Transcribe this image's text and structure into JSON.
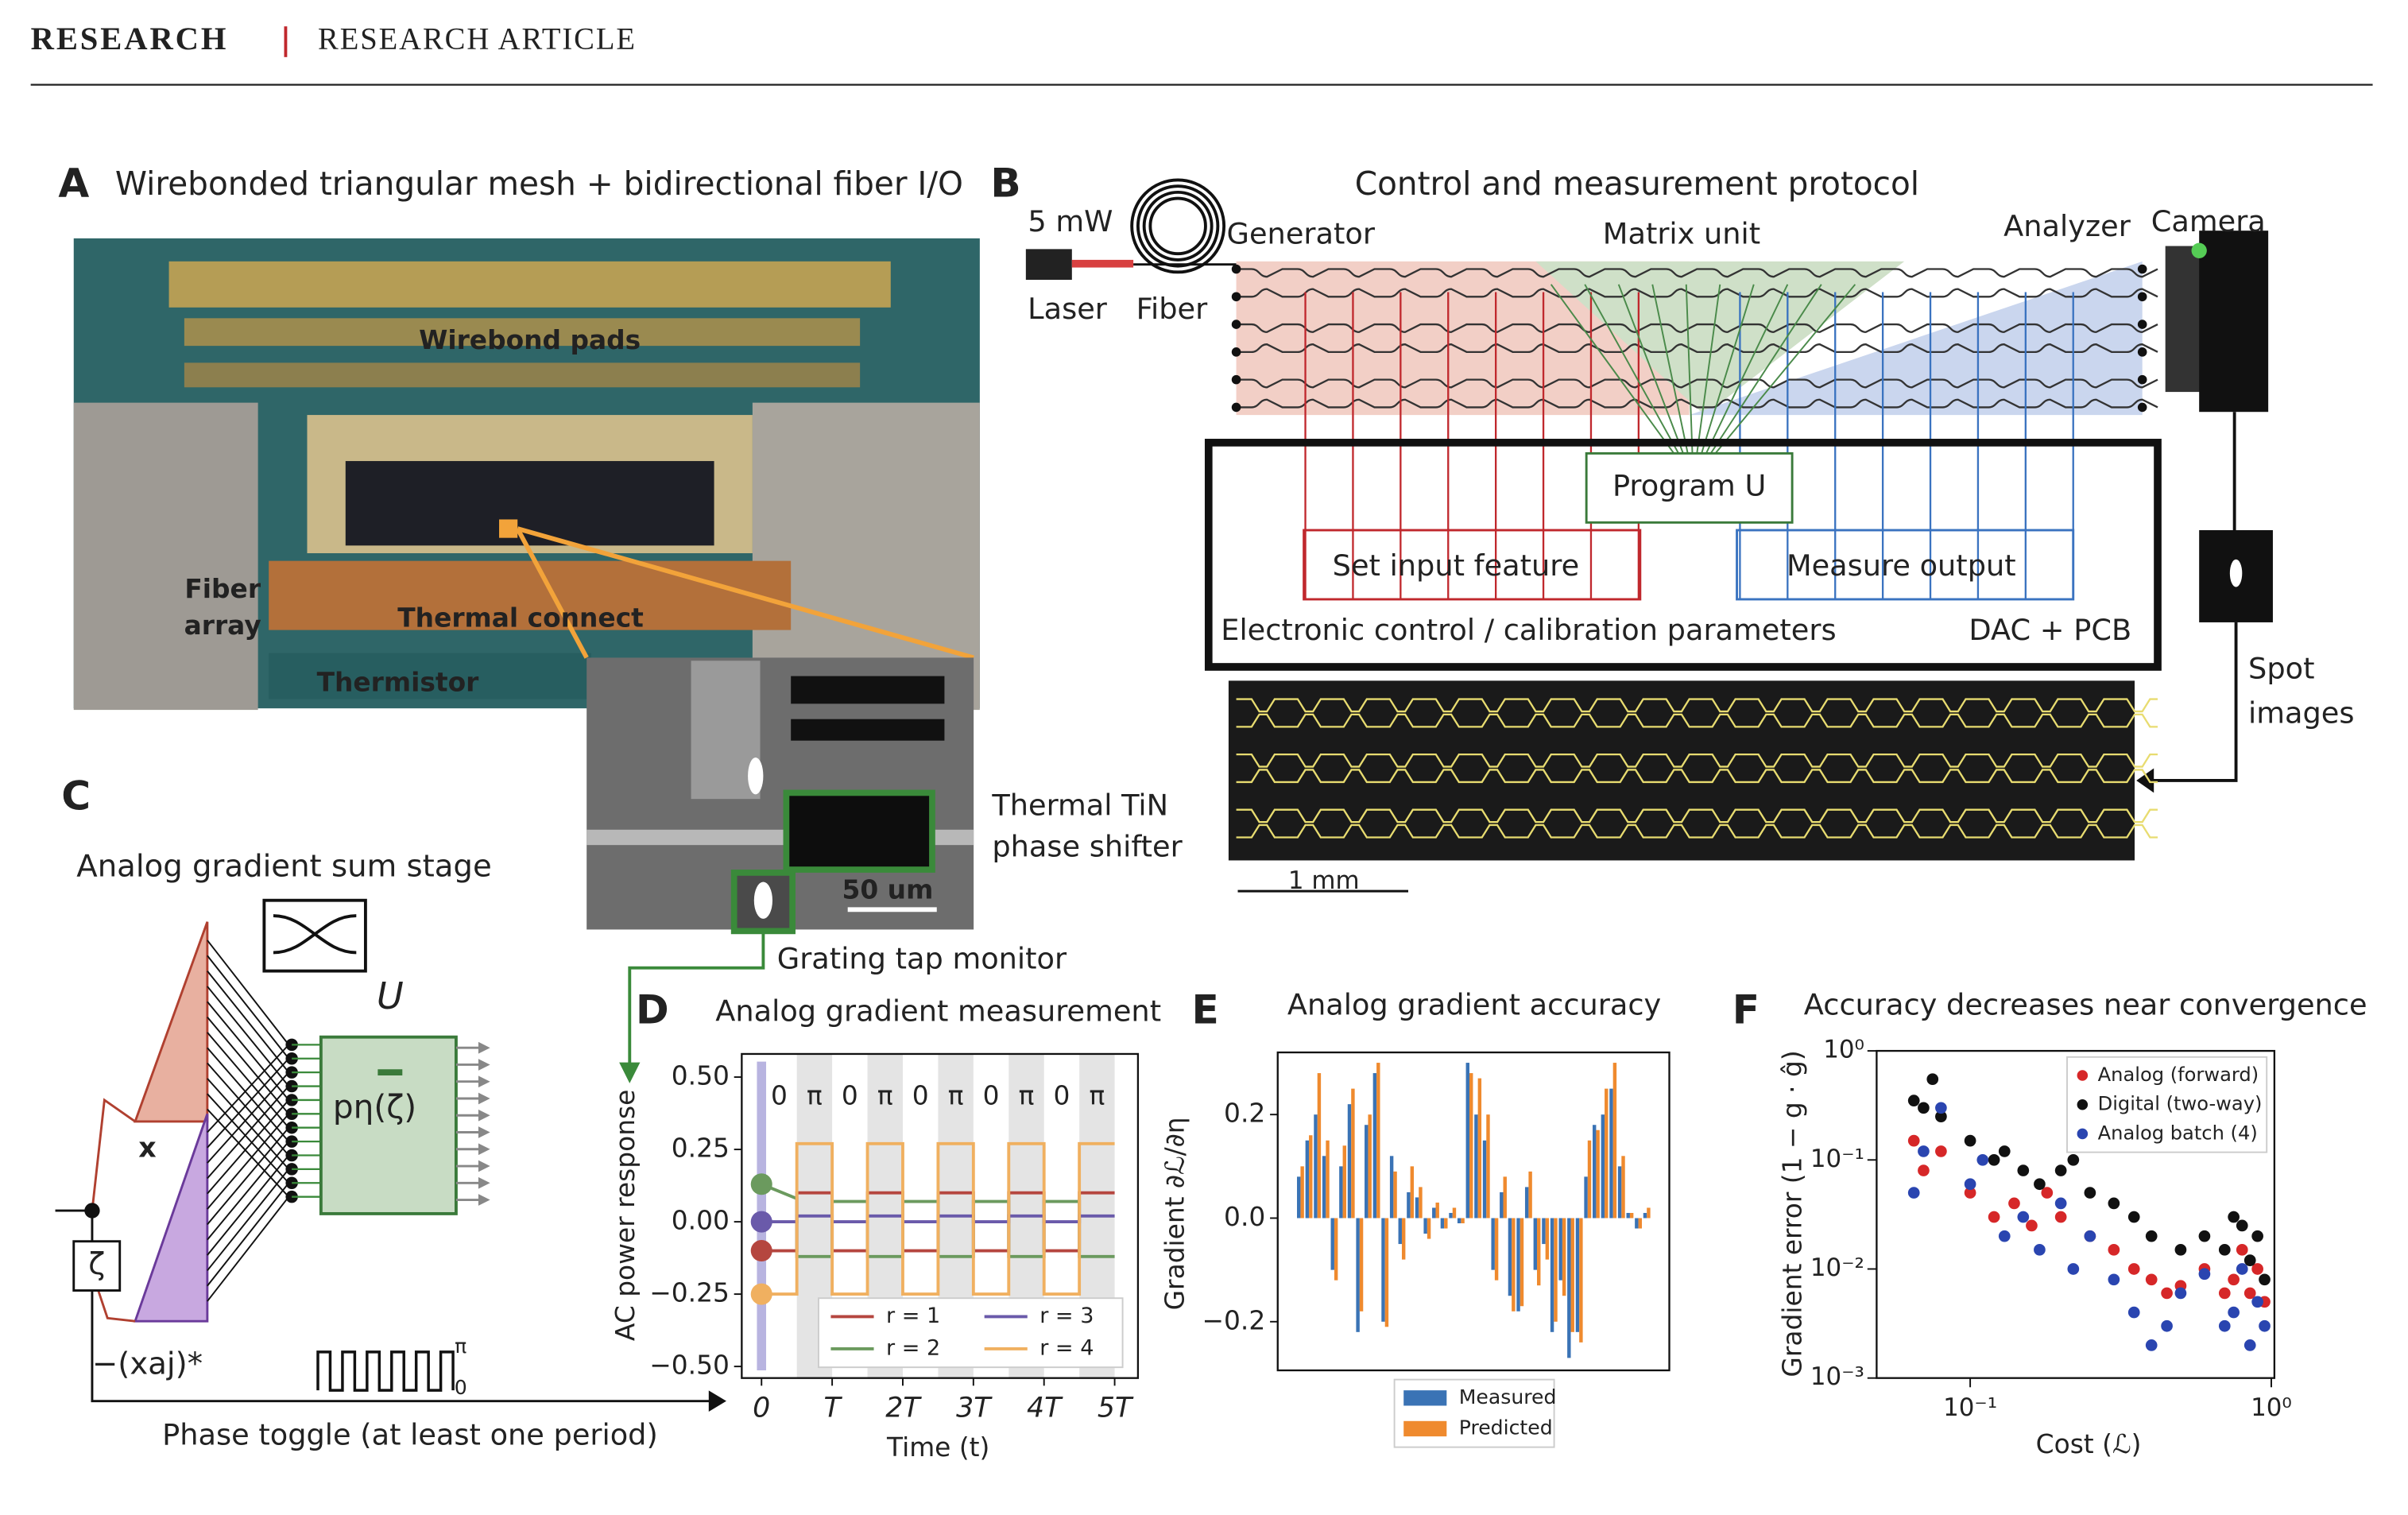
{
  "header": {
    "section": "RESEARCH",
    "kind": "RESEARCH ARTICLE"
  },
  "panels": {
    "A": {
      "label": "A",
      "title": "Wirebonded triangular mesh + bidirectional fiber I/O",
      "photo_labels": [
        "Wirebond pads",
        "Fiber",
        "array",
        "Thermal connect",
        "Thermistor"
      ],
      "inset_scale": "50 um",
      "callouts": [
        "Thermal TiN",
        "phase shifter",
        "Grating tap monitor"
      ]
    },
    "B": {
      "label": "B",
      "title": "Control and measurement protocol",
      "labels": [
        "5 mW",
        "Laser",
        "Fiber",
        "Generator",
        "Matrix unit",
        "Analyzer",
        "Camera",
        "Program U",
        "Set input feature",
        "Measure output",
        "Electronic control / calibration parameters",
        "DAC + PCB",
        "Spot",
        "images",
        "1 mm"
      ]
    },
    "C": {
      "label": "C",
      "title": "Analog gradient sum stage",
      "labels": [
        "U",
        "pη(ζ)",
        "x",
        "ζ",
        "−(xaj)*",
        "π",
        "0",
        "Phase toggle (at least one period)"
      ]
    }
  },
  "chart_data": [
    {
      "type": "line",
      "panel": "D",
      "title": "Analog gradient measurement",
      "xlabel": "Time (t)",
      "ylabel": "AC power response",
      "x": [
        0,
        0.5,
        0.5,
        1,
        1,
        1.5,
        1.5,
        2,
        2,
        2.5,
        2.5,
        3,
        3,
        3.5,
        3.5,
        4,
        4,
        4.5,
        4.5,
        5
      ],
      "series": [
        {
          "name": "r = 1",
          "color": "#b5463f",
          "values": [
            -0.1,
            -0.1,
            0.1,
            0.1,
            -0.1,
            -0.1,
            0.1,
            0.1,
            -0.1,
            -0.1,
            0.1,
            0.1,
            -0.1,
            -0.1,
            0.1,
            0.1,
            -0.1,
            -0.1,
            0.1,
            0.1
          ]
        },
        {
          "name": "r = 2",
          "color": "#6b9a5e",
          "values": [
            0.13,
            0.08,
            -0.12,
            -0.12,
            0.07,
            0.07,
            -0.12,
            -0.12,
            0.07,
            0.07,
            -0.12,
            -0.12,
            0.07,
            0.07,
            -0.12,
            -0.12,
            0.07,
            0.07,
            -0.12,
            -0.12
          ]
        },
        {
          "name": "r = 3",
          "color": "#6a5aaa",
          "values": [
            0,
            0,
            0.02,
            0.02,
            0,
            0,
            0.02,
            0.02,
            0,
            0,
            0.02,
            0.02,
            0,
            0,
            0.02,
            0.02,
            0,
            0,
            0.02,
            0.02
          ]
        },
        {
          "name": "r = 4",
          "color": "#f0b060",
          "values": [
            -0.25,
            -0.25,
            0.27,
            0.27,
            -0.25,
            -0.25,
            0.27,
            0.27,
            -0.25,
            -0.25,
            0.27,
            0.27,
            -0.25,
            -0.25,
            0.27,
            0.27,
            -0.25,
            -0.25,
            0.27,
            0.27
          ]
        }
      ],
      "annotations": [
        "0",
        "π",
        "0",
        "π",
        "0",
        "π",
        "0",
        "π",
        "0",
        "π"
      ],
      "xlim": [
        -0.28,
        5.33
      ],
      "ylim": [
        -0.54,
        0.58
      ],
      "xticks": [
        0,
        {
          "value": 1,
          "label": "T"
        },
        {
          "value": 2,
          "label": "2T"
        },
        {
          "value": 3,
          "label": "3T"
        },
        {
          "value": 4,
          "label": "4T"
        },
        {
          "value": 5,
          "label": "5T"
        }
      ],
      "yticks": [
        {
          "value": -0.5,
          "label": "−0.50"
        },
        {
          "value": -0.25,
          "label": "−0.25"
        },
        {
          "value": 0,
          "label": "0.00"
        },
        0.25,
        {
          "value": 0.5,
          "label": "0.50"
        }
      ],
      "legend": "lower right"
    },
    {
      "type": "bar",
      "panel": "E",
      "title": "Analog gradient accuracy",
      "ylabel": "Gradient ∂ℒ/∂η",
      "series": [
        {
          "name": "Measured",
          "color": "#3a73b5",
          "values": [
            0.08,
            0.15,
            0.2,
            0.12,
            -0.1,
            0.1,
            0.22,
            -0.22,
            0.18,
            0.28,
            -0.2,
            0.12,
            -0.05,
            0.05,
            0.04,
            -0.03,
            0.02,
            -0.02,
            0.01,
            -0.01,
            0.3,
            0.2,
            0.15,
            -0.1,
            0.05,
            -0.15,
            -0.18,
            0.06,
            -0.1,
            -0.05,
            -0.22,
            -0.12,
            -0.27,
            -0.22,
            0.08,
            0.18,
            0.2,
            0.25,
            0.1,
            0.01,
            -0.02,
            0.01
          ]
        },
        {
          "name": "Predicted",
          "color": "#ef8a2e",
          "values": [
            0.1,
            0.16,
            0.28,
            0.15,
            -0.12,
            0.14,
            0.25,
            -0.18,
            0.2,
            0.3,
            -0.21,
            0.09,
            -0.08,
            0.1,
            0.06,
            -0.04,
            0.03,
            -0.02,
            0.02,
            -0.01,
            0.28,
            0.27,
            0.2,
            -0.12,
            0.08,
            -0.18,
            -0.17,
            0.09,
            -0.13,
            -0.08,
            -0.2,
            -0.15,
            -0.22,
            -0.24,
            0.15,
            0.17,
            0.25,
            0.3,
            0.12,
            0.01,
            -0.02,
            0.02
          ]
        }
      ],
      "ylim": [
        -0.294,
        0.32
      ],
      "yticks": [
        {
          "value": -0.2,
          "label": "−0.2"
        },
        {
          "value": 0,
          "label": "0.0"
        },
        0.2
      ],
      "legend": "below"
    },
    {
      "type": "scatter",
      "panel": "F",
      "title": "Accuracy decreases near convergence",
      "xlabel": "Cost (ℒ)",
      "ylabel": "Gradient error (1 − g · ĝ)",
      "xscale": "log",
      "yscale": "log",
      "series": [
        {
          "name": "Analog (forward)",
          "color": "#d62728",
          "x": [
            0.065,
            0.07,
            0.08,
            0.1,
            0.12,
            0.14,
            0.16,
            0.18,
            0.2,
            0.25,
            0.3,
            0.35,
            0.4,
            0.45,
            0.5,
            0.6,
            0.7,
            0.75,
            0.8,
            0.85,
            0.9,
            0.95
          ],
          "values": [
            0.15,
            0.08,
            0.12,
            0.05,
            0.03,
            0.04,
            0.025,
            0.05,
            0.03,
            0.02,
            0.015,
            0.01,
            0.008,
            0.006,
            0.007,
            0.01,
            0.006,
            0.008,
            0.015,
            0.006,
            0.01,
            0.005
          ]
        },
        {
          "name": "Digital (two-way)",
          "color": "#111111",
          "x": [
            0.065,
            0.07,
            0.075,
            0.08,
            0.1,
            0.12,
            0.13,
            0.15,
            0.17,
            0.2,
            0.22,
            0.25,
            0.3,
            0.35,
            0.4,
            0.5,
            0.6,
            0.7,
            0.75,
            0.8,
            0.85,
            0.9,
            0.95
          ],
          "values": [
            0.35,
            0.3,
            0.55,
            0.25,
            0.15,
            0.1,
            0.12,
            0.08,
            0.06,
            0.08,
            0.1,
            0.05,
            0.04,
            0.03,
            0.02,
            0.015,
            0.02,
            0.015,
            0.03,
            0.025,
            0.012,
            0.02,
            0.008
          ]
        },
        {
          "name": "Analog batch (4)",
          "color": "#2a45b0",
          "x": [
            0.065,
            0.07,
            0.08,
            0.1,
            0.11,
            0.13,
            0.15,
            0.17,
            0.2,
            0.22,
            0.25,
            0.3,
            0.35,
            0.4,
            0.45,
            0.5,
            0.6,
            0.7,
            0.75,
            0.8,
            0.85,
            0.9,
            0.95
          ],
          "values": [
            0.05,
            0.12,
            0.3,
            0.06,
            0.1,
            0.02,
            0.03,
            0.015,
            0.04,
            0.01,
            0.02,
            0.008,
            0.004,
            0.002,
            0.003,
            0.006,
            0.009,
            0.003,
            0.004,
            0.01,
            0.002,
            0.005,
            0.003
          ]
        }
      ],
      "xlim": [
        0.0489,
        1.024
      ],
      "ylim": [
        0.001,
        1
      ],
      "xticks": [
        {
          "value": 0.1,
          "label": "10⁻¹"
        },
        {
          "value": 1,
          "label": "10⁰"
        }
      ],
      "yticks": [
        {
          "value": 0.001,
          "label": "10⁻³"
        },
        {
          "value": 0.01,
          "label": "10⁻²"
        },
        {
          "value": 0.1,
          "label": "10⁻¹"
        },
        {
          "value": 1,
          "label": "10⁰"
        }
      ],
      "legend": "upper right"
    }
  ]
}
